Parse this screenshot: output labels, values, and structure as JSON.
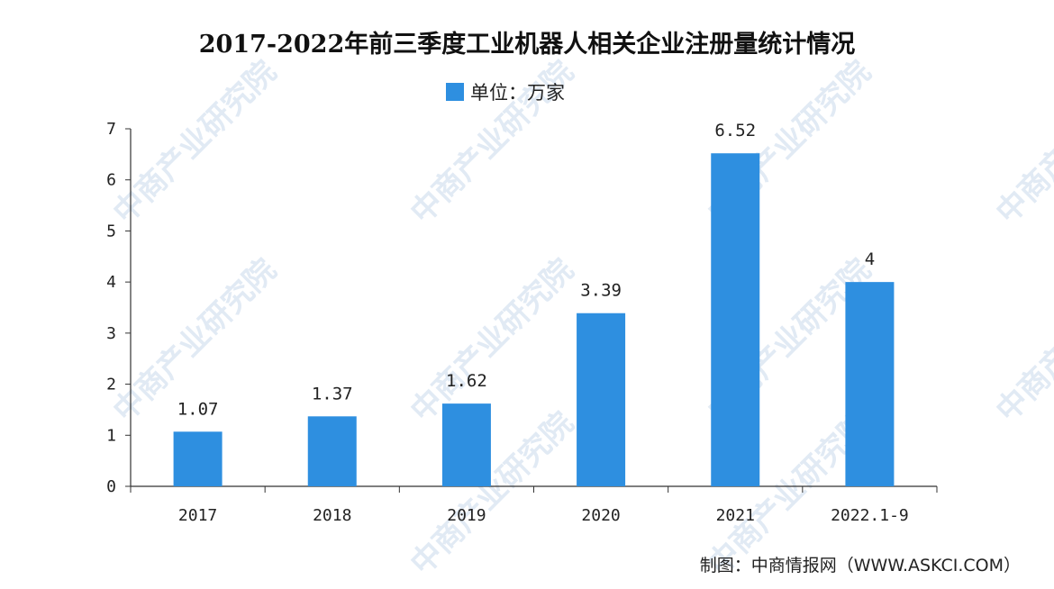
{
  "chart_data": {
    "type": "bar",
    "title": "2017-2022年前三季度工业机器人相关企业注册量统计情况",
    "legend": {
      "label": "单位：万家",
      "placement": "top-center"
    },
    "categories": [
      "2017",
      "2018",
      "2019",
      "2020",
      "2021",
      "2022.1-9"
    ],
    "series": [
      {
        "name": "单位：万家",
        "values": [
          1.07,
          1.37,
          1.62,
          3.39,
          6.52,
          4
        ]
      }
    ],
    "data_labels": [
      "1.07",
      "1.37",
      "1.62",
      "3.39",
      "6.52",
      "4"
    ],
    "ylim": [
      0,
      7
    ],
    "yticks": [
      "0",
      "1",
      "2",
      "3",
      "4",
      "5",
      "6",
      "7"
    ],
    "grid": false,
    "bar_color": "#2e8fe0",
    "source": "制图：中商情报网（WWW.ASKCI.COM）",
    "watermark": "中商产业研究院"
  }
}
